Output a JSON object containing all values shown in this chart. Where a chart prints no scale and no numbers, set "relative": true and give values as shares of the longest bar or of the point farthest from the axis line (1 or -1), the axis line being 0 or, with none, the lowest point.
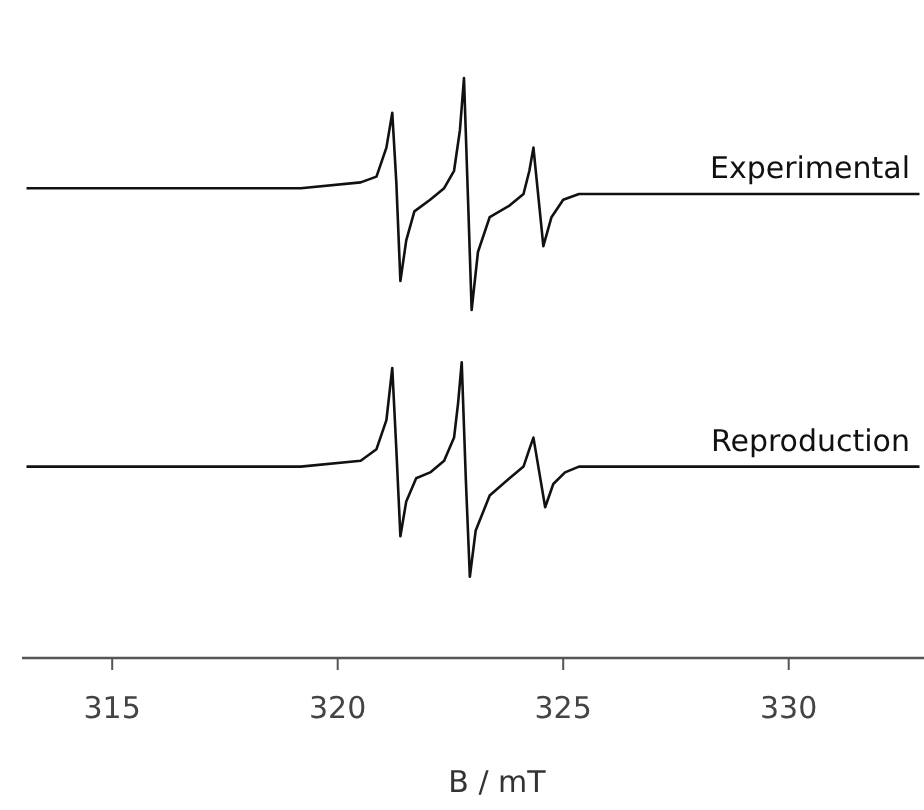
{
  "chart_data": {
    "type": "line",
    "relative": true,
    "xlim": [
      313,
      333
    ],
    "xticks": [
      315,
      320,
      325,
      330
    ],
    "xlabel": "B / mT",
    "tick_labels": "x",
    "series": [
      {
        "name": "Experimental",
        "color": "#111111",
        "x": [
          313.1,
          319.18,
          320.51,
          320.86,
          321.08,
          321.21,
          321.3,
          321.39,
          321.52,
          321.7,
          322.05,
          322.36,
          322.58,
          322.71,
          322.8,
          322.89,
          322.97,
          323.11,
          323.37,
          323.81,
          324.12,
          324.25,
          324.34,
          324.43,
          324.56,
          324.74,
          325.0,
          325.35,
          325.79,
          332.9
        ],
        "values": [
          0.81,
          0.81,
          0.82,
          0.83,
          0.88,
          0.94,
          0.82,
          0.65,
          0.72,
          0.77,
          0.79,
          0.81,
          0.84,
          0.91,
          1,
          0.79,
          0.6,
          0.7,
          0.76,
          0.78,
          0.8,
          0.84,
          0.88,
          0.81,
          0.71,
          0.76,
          0.79,
          0.8,
          0.8,
          0.8
        ]
      },
      {
        "name": "Reproduction",
        "color": "#111111",
        "x": [
          313.1,
          319.18,
          320.51,
          320.86,
          321.08,
          321.21,
          321.3,
          321.39,
          321.52,
          321.74,
          322.05,
          322.36,
          322.58,
          322.67,
          322.75,
          322.84,
          322.93,
          323.06,
          323.37,
          323.81,
          324.12,
          324.25,
          324.34,
          324.47,
          324.6,
          324.78,
          325.04,
          325.35,
          325.79,
          332.9
        ],
        "values": [
          0.33,
          0.33,
          0.34,
          0.36,
          0.41,
          0.5,
          0.36,
          0.21,
          0.27,
          0.31,
          0.32,
          0.34,
          0.38,
          0.44,
          0.51,
          0.31,
          0.14,
          0.22,
          0.28,
          0.31,
          0.33,
          0.36,
          0.38,
          0.32,
          0.26,
          0.3,
          0.32,
          0.33,
          0.33,
          0.33
        ]
      }
    ]
  }
}
